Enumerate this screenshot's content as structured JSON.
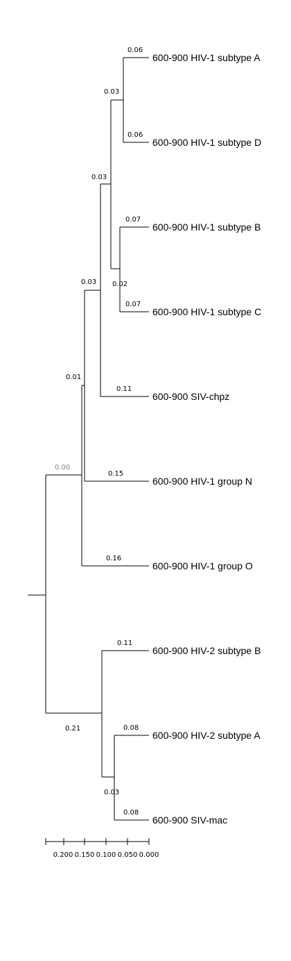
{
  "tree": {
    "taxa": [
      "600-900 HIV-1 subtype A",
      "600-900 HIV-1 subtype D",
      "600-900 HIV-1 subtype B",
      "600-900 HIV-1 subtype C",
      "600-900 SIV-chpz",
      "600-900 HIV-1 group N",
      "600-900 HIV-1 group O",
      "600-900 HIV-2 subtype B",
      "600-900 HIV-2 subtype A",
      "600-900 SIV-mac"
    ],
    "leaf_branch_lengths": [
      "0.06",
      "0.06",
      "0.07",
      "0.07",
      "0.11",
      "0.15",
      "0.16",
      "0.11",
      "0.08",
      "0.08"
    ],
    "internal_branch_lengths": {
      "hiv1_ad": "0.03",
      "hiv1_abcd": "0.03",
      "hiv1_bc": "0.02",
      "hiv1_chpz": "0.03",
      "hiv1_n": "0.01",
      "hiv1_all": "0.00",
      "hiv2_siv": "0.21",
      "hiv2a_sivmac": "0.03"
    },
    "muted_color": "#808080"
  },
  "scale": {
    "ticks": [
      "0.200",
      "0.150",
      "0.100",
      "0.050",
      "0.000"
    ]
  }
}
